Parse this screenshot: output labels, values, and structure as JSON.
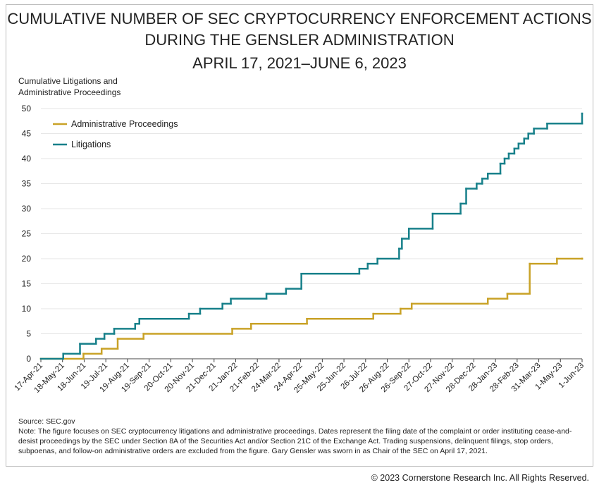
{
  "chart_data": {
    "type": "step",
    "title": [
      "CUMULATIVE NUMBER OF SEC CRYPTOCURRENCY ENFORCEMENT ACTIONS",
      "DURING THE GENSLER ADMINISTRATION",
      "APRIL 17, 2021–JUNE 6, 2023"
    ],
    "y_label": [
      "Cumulative Litigations and",
      "Administrative Proceedings"
    ],
    "series": [
      {
        "name": "Administrative Proceedings",
        "color": "#c9a227",
        "x": [
          "2021-04-17",
          "2021-06-17",
          "2021-07-13",
          "2021-08-05",
          "2021-09-11",
          "2022-01-16",
          "2022-02-12",
          "2022-05-03",
          "2022-08-06",
          "2022-09-14",
          "2022-09-30",
          "2023-01-17",
          "2023-02-14",
          "2023-03-18",
          "2023-04-26",
          "2023-06-01"
        ],
        "values": [
          0,
          1,
          2,
          4,
          5,
          6,
          7,
          8,
          9,
          10,
          11,
          12,
          13,
          19,
          20,
          20
        ]
      },
      {
        "name": "Litigations",
        "color": "#17808a",
        "x": [
          "2021-04-17",
          "2021-05-19",
          "2021-06-12",
          "2021-07-05",
          "2021-07-17",
          "2021-07-31",
          "2021-08-30",
          "2021-09-05",
          "2021-11-15",
          "2021-12-01",
          "2022-01-02",
          "2022-01-14",
          "2022-03-06",
          "2022-04-03",
          "2022-04-25",
          "2022-07-17",
          "2022-07-29",
          "2022-08-12",
          "2022-09-12",
          "2022-09-16",
          "2022-09-26",
          "2022-10-30",
          "2022-12-09",
          "2022-12-17",
          "2023-01-01",
          "2023-01-09",
          "2023-01-17",
          "2023-02-04",
          "2023-02-10",
          "2023-02-16",
          "2023-02-24",
          "2023-03-02",
          "2023-03-10",
          "2023-03-16",
          "2023-03-24",
          "2023-04-12",
          "2023-06-01"
        ],
        "values": [
          0,
          1,
          3,
          4,
          5,
          6,
          7,
          8,
          9,
          10,
          11,
          12,
          13,
          14,
          17,
          18,
          19,
          20,
          22,
          24,
          26,
          29,
          31,
          34,
          35,
          36,
          37,
          39,
          40,
          41,
          42,
          43,
          44,
          45,
          46,
          47,
          49
        ]
      }
    ],
    "xlim": [
      "2021-04-17",
      "2023-06-01"
    ],
    "xticks": [
      {
        "value": "2021-04-17",
        "label": "17-Apr-21"
      },
      {
        "value": "2021-05-18",
        "label": "18-May-21"
      },
      {
        "value": "2021-06-18",
        "label": "18-Jun-21"
      },
      {
        "value": "2021-07-19",
        "label": "19-Jul-21"
      },
      {
        "value": "2021-08-19",
        "label": "19-Aug-21"
      },
      {
        "value": "2021-09-19",
        "label": "19-Sep-21"
      },
      {
        "value": "2021-10-20",
        "label": "20-Oct-21"
      },
      {
        "value": "2021-11-20",
        "label": "20-Nov-21"
      },
      {
        "value": "2021-12-21",
        "label": "21-Dec-21"
      },
      {
        "value": "2022-01-21",
        "label": "21-Jan-22"
      },
      {
        "value": "2022-02-21",
        "label": "21-Feb-22"
      },
      {
        "value": "2022-03-24",
        "label": "24-Mar-22"
      },
      {
        "value": "2022-04-24",
        "label": "24-Apr-22"
      },
      {
        "value": "2022-05-25",
        "label": "25-May-22"
      },
      {
        "value": "2022-06-25",
        "label": "25-Jun-22"
      },
      {
        "value": "2022-07-26",
        "label": "26-Jul-22"
      },
      {
        "value": "2022-08-26",
        "label": "26-Aug-22"
      },
      {
        "value": "2022-09-26",
        "label": "26-Sep-22"
      },
      {
        "value": "2022-10-27",
        "label": "27-Oct-22"
      },
      {
        "value": "2022-11-27",
        "label": "27-Nov-22"
      },
      {
        "value": "2022-12-28",
        "label": "28-Dec-22"
      },
      {
        "value": "2023-01-28",
        "label": "28-Jan-23"
      },
      {
        "value": "2023-02-28",
        "label": "28-Feb-23"
      },
      {
        "value": "2023-03-31",
        "label": "31-Mar-23"
      },
      {
        "value": "2023-05-01",
        "label": "1-May-23"
      },
      {
        "value": "2023-06-01",
        "label": "1-Jun-23"
      }
    ],
    "ylim": [
      0,
      50
    ],
    "yticks": [
      0,
      5,
      10,
      15,
      20,
      25,
      30,
      35,
      40,
      45,
      50
    ],
    "grid": true,
    "legend": "upper left"
  },
  "footer": {
    "source": "Source: SEC.gov",
    "note": "Note: The figure focuses on SEC cryptocurrency litigations and administrative proceedings. Dates represent the filing date of the complaint or order instituting cease-and-desist proceedings by the SEC under Section 8A of the Securities Act and/or Section 21C of the Exchange Act. Trading suspensions, delinquent filings, stop orders, subpoenas, and follow-on administrative orders are excluded from the figure. Gary Gensler was sworn in as Chair of the SEC on April 17, 2021.",
    "copyright": "© 2023 Cornerstone Research Inc. All Rights Reserved."
  }
}
